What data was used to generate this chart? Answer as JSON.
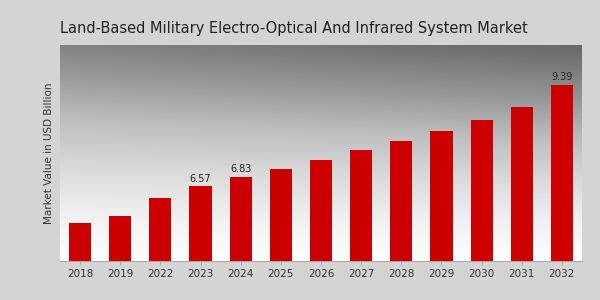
{
  "title": "Land-Based Military Electro-Optical And Infrared System Market",
  "ylabel": "Market Value in USD Billion",
  "categories": [
    "2018",
    "2019",
    "2022",
    "2023",
    "2024",
    "2025",
    "2026",
    "2027",
    "2028",
    "2029",
    "2030",
    "2031",
    "2032"
  ],
  "values": [
    5.55,
    5.75,
    6.25,
    6.57,
    6.83,
    7.05,
    7.3,
    7.58,
    7.82,
    8.1,
    8.42,
    8.78,
    9.39
  ],
  "bar_color": "#cc0000",
  "bg_color": "#d8d8d8",
  "title_fontsize": 10.5,
  "label_fontsize": 7,
  "tick_fontsize": 7.5,
  "ylabel_fontsize": 7.5,
  "labeled_indices": [
    3,
    4,
    12
  ],
  "labeled_values": [
    "6.57",
    "6.83",
    "9.39"
  ],
  "bottom_strip_color": "#bb0000",
  "ylim_min": 4.5,
  "ylim_max": 10.5,
  "bar_width": 0.55
}
